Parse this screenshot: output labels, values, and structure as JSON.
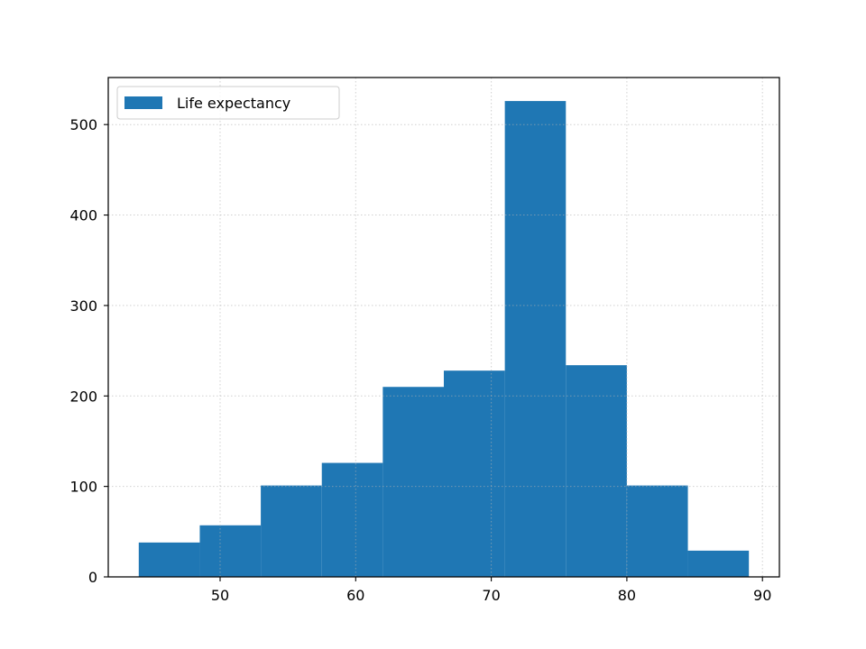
{
  "chart_data": {
    "type": "bar",
    "subtype": "histogram",
    "title": "",
    "xlabel": "",
    "ylabel": "",
    "xlim": [
      41.75,
      91.25
    ],
    "ylim": [
      0,
      552
    ],
    "xticks": [
      50,
      60,
      70,
      80,
      90
    ],
    "yticks": [
      0,
      100,
      200,
      300,
      400,
      500
    ],
    "grid": true,
    "grid_style": "dotted",
    "legend_position": "top-left",
    "series": [
      {
        "name": "Life expectancy",
        "color": "#1f77b4",
        "bin_edges": [
          44.0,
          48.5,
          53.0,
          57.5,
          62.0,
          66.5,
          71.0,
          75.5,
          80.0,
          84.5,
          89.0
        ],
        "counts": [
          38,
          57,
          101,
          126,
          210,
          228,
          526,
          234,
          101,
          29
        ]
      }
    ]
  }
}
